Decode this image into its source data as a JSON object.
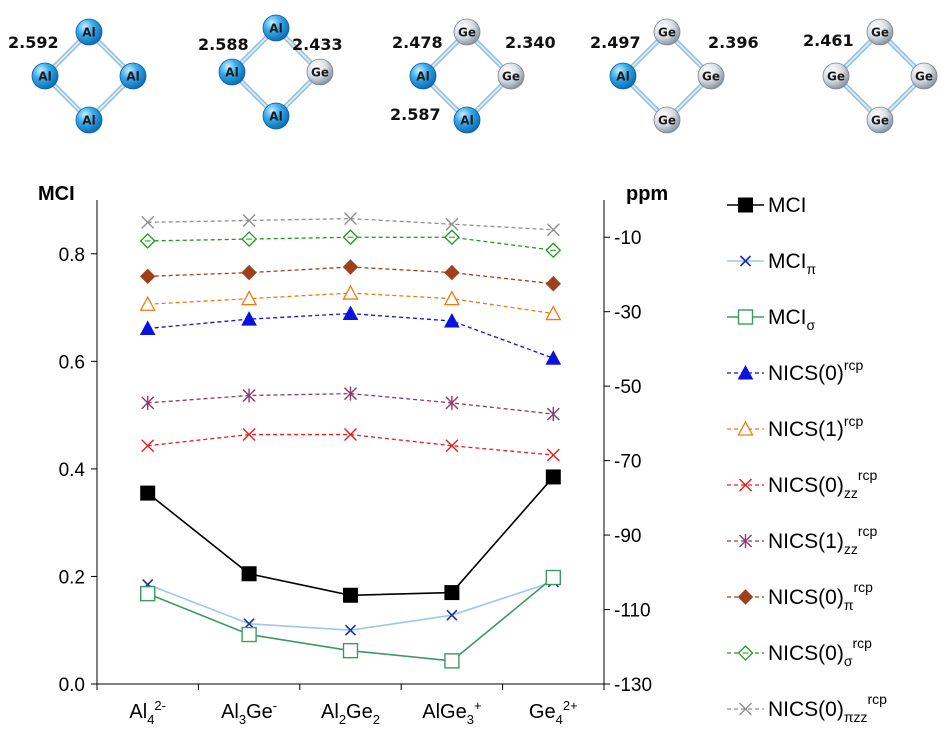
{
  "molecules": [
    {
      "bond_labels": [
        "2.592"
      ],
      "atoms": [
        {
          "symbol": "Al",
          "color": "#1E9BE0"
        },
        {
          "symbol": "Al",
          "color": "#1E9BE0"
        },
        {
          "symbol": "Al",
          "color": "#1E9BE0"
        },
        {
          "symbol": "Al",
          "color": "#1E9BE0"
        }
      ]
    },
    {
      "bond_labels": [
        "2.588",
        "2.433"
      ],
      "atoms": [
        {
          "symbol": "Al",
          "color": "#1E9BE0"
        },
        {
          "symbol": "Al",
          "color": "#1E9BE0"
        },
        {
          "symbol": "Ge",
          "color": "#C8CED6"
        },
        {
          "symbol": "Al",
          "color": "#1E9BE0"
        }
      ]
    },
    {
      "bond_labels": [
        "2.478",
        "2.340",
        "2.587"
      ],
      "atoms": [
        {
          "symbol": "Ge",
          "color": "#C8CED6"
        },
        {
          "symbol": "Al",
          "color": "#1E9BE0"
        },
        {
          "symbol": "Ge",
          "color": "#C8CED6"
        },
        {
          "symbol": "Al",
          "color": "#1E9BE0"
        }
      ]
    },
    {
      "bond_labels": [
        "2.497",
        "2.396"
      ],
      "atoms": [
        {
          "symbol": "Ge",
          "color": "#C8CED6"
        },
        {
          "symbol": "Al",
          "color": "#1E9BE0"
        },
        {
          "symbol": "Ge",
          "color": "#C8CED6"
        },
        {
          "symbol": "Ge",
          "color": "#C8CED6"
        }
      ]
    },
    {
      "bond_labels": [
        "2.461"
      ],
      "atoms": [
        {
          "symbol": "Ge",
          "color": "#C8CED6"
        },
        {
          "symbol": "Ge",
          "color": "#C8CED6"
        },
        {
          "symbol": "Ge",
          "color": "#C8CED6"
        },
        {
          "symbol": "Ge",
          "color": "#C8CED6"
        }
      ]
    }
  ],
  "chart_data": {
    "type": "line",
    "left_axis": {
      "label": "MCI",
      "range": [
        0.0,
        0.9
      ],
      "ticks": [
        "0.0",
        "0.2",
        "0.4",
        "0.6",
        "0.8"
      ]
    },
    "right_axis": {
      "label": "ppm",
      "range": [
        -130,
        0
      ],
      "ticks": [
        "-10",
        "-30",
        "-50",
        "-70",
        "-90",
        "-110",
        "-130"
      ]
    },
    "categories": [
      {
        "base": "Al",
        "sub": "4",
        "sup": "2-"
      },
      {
        "base": "Al",
        "sub": "3",
        "mid": "Ge",
        "sub2": "",
        "sup": "-"
      },
      {
        "base": "Al",
        "sub": "2",
        "mid": "Ge",
        "sub2": "2",
        "sup": ""
      },
      {
        "base": "AlGe",
        "sub": "3",
        "sup": "+"
      },
      {
        "base": "Ge",
        "sub": "4",
        "sup": "2+"
      }
    ],
    "grid": false,
    "legend_placement": "right",
    "series": [
      {
        "name": "MCI",
        "sub": "",
        "sup": "",
        "axis": "left",
        "values": [
          0.355,
          0.205,
          0.165,
          0.17,
          0.385
        ],
        "color": "#000000",
        "marker": "square-filled",
        "dash": false
      },
      {
        "name": "MCI",
        "sub": "π",
        "sup": "",
        "axis": "left",
        "values": [
          0.185,
          0.112,
          0.1,
          0.128,
          0.19
        ],
        "color": "#9CC8EA",
        "marker": "x-blue",
        "dash": false
      },
      {
        "name": "MCI",
        "sub": "σ",
        "sup": "",
        "axis": "left",
        "values": [
          0.168,
          0.092,
          0.062,
          0.043,
          0.198
        ],
        "color": "#3D9A5E",
        "marker": "square-open",
        "dash": false
      },
      {
        "name": "NICS(0)",
        "sub": "",
        "sup": "rcp",
        "axis": "right",
        "values": [
          -34.5,
          -32.0,
          -30.5,
          -32.5,
          -42.5
        ],
        "color": "#0A12E0",
        "marker": "triangle-filled",
        "dash": true
      },
      {
        "name": "NICS(1)",
        "sub": "",
        "sup": "rcp",
        "axis": "right",
        "values": [
          -28.0,
          -26.5,
          -25.0,
          -26.5,
          -30.5
        ],
        "color": "#F07A10",
        "marker": "triangle-open",
        "dash": true
      },
      {
        "name": "NICS(0)",
        "sub": "zz",
        "sup": "rcp",
        "axis": "right",
        "values": [
          -66.0,
          -63.0,
          -63.0,
          -66.0,
          -68.5
        ],
        "color": "#E81E1E",
        "marker": "x",
        "dash": true
      },
      {
        "name": "NICS(1)",
        "sub": "zz",
        "sup": "rcp",
        "axis": "right",
        "values": [
          -54.5,
          -52.5,
          -52.0,
          -54.5,
          -57.5
        ],
        "color": "#8A3A6A",
        "marker": "asterisk",
        "dash": true
      },
      {
        "name": "NICS(0)",
        "sub": "π",
        "sup": "rcp",
        "axis": "right",
        "values": [
          -20.5,
          -19.5,
          -18.0,
          -19.5,
          -22.5
        ],
        "color": "#A0401A",
        "marker": "diamond-filled",
        "dash": true
      },
      {
        "name": "NICS(0)",
        "sub": "σ",
        "sup": "rcp",
        "axis": "right",
        "values": [
          -11.0,
          -10.5,
          -10.0,
          -10.0,
          -13.5
        ],
        "color": "#1E9A1E",
        "marker": "diamond-open",
        "dash": true
      },
      {
        "name": "NICS(0)",
        "sub": "πzz",
        "sup": "rcp",
        "axis": "right",
        "values": [
          -6.0,
          -5.5,
          -5.0,
          -6.5,
          -8.0
        ],
        "color": "#909090",
        "marker": "x",
        "dash": true
      }
    ]
  }
}
